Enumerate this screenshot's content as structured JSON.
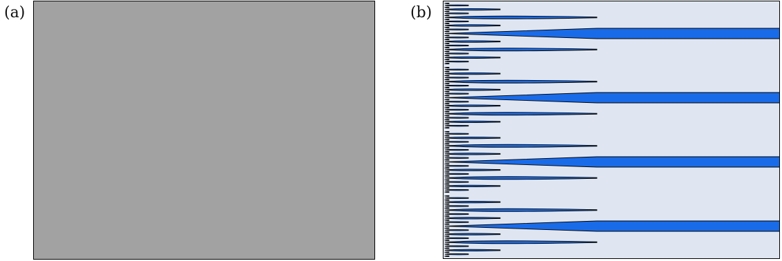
{
  "panels": [
    {
      "id": "a",
      "label": "(a)",
      "fill_color": "#a2a2a2"
    },
    {
      "id": "b",
      "label": "(b)",
      "background_color": "#dfe6f1"
    }
  ],
  "branching_pattern": {
    "generations": 5,
    "splits_per_generation": 2,
    "top_level_branches": 4,
    "finger_fill_color": "#1a6be8",
    "finger_outline_color": "#000000"
  }
}
